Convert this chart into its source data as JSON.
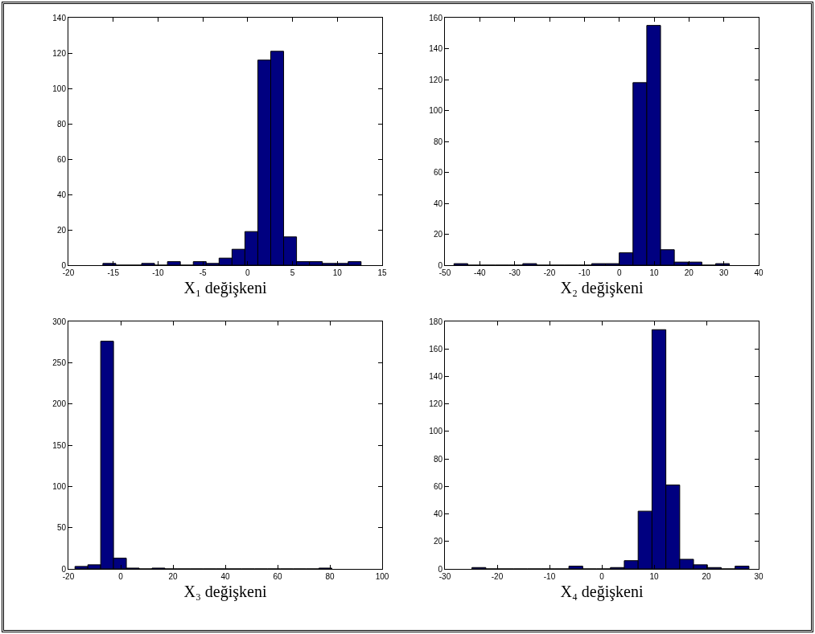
{
  "chart_data": [
    {
      "type": "histogram",
      "xlabel": "X₁ değişkeni",
      "color": "#000080",
      "bins": [
        -16.15,
        -14.71,
        -13.27,
        -11.83,
        -10.39,
        -8.95,
        -7.51,
        -6.07,
        -4.63,
        -3.19,
        -1.75,
        -0.31,
        1.13,
        2.57,
        4.01,
        5.45,
        6.89,
        8.33,
        9.77,
        11.21,
        12.65
      ],
      "values": [
        1,
        0,
        0,
        1,
        0,
        2,
        0,
        2,
        1,
        4,
        9,
        19,
        116,
        121,
        16,
        2,
        2,
        1,
        1,
        2
      ],
      "xlim": [
        -20,
        15
      ],
      "xticks": [
        -20,
        -15,
        -10,
        -5,
        0,
        5,
        10,
        15
      ],
      "ylim": [
        0,
        140
      ],
      "yticks": [
        0,
        20,
        40,
        60,
        80,
        100,
        120,
        140
      ]
    },
    {
      "type": "histogram",
      "xlabel": "X₂ değişkeni",
      "color": "#000080",
      "bins": [
        -47.4,
        -43.45,
        -39.5,
        -35.55,
        -31.6,
        -27.65,
        -23.7,
        -19.75,
        -15.8,
        -11.85,
        -7.9,
        -3.95,
        0,
        3.95,
        7.9,
        11.85,
        15.8,
        19.75,
        23.7,
        27.65,
        31.6
      ],
      "values": [
        1,
        0,
        0,
        0,
        0,
        1,
        0,
        0,
        0,
        0,
        1,
        1,
        8,
        118,
        155,
        10,
        2,
        2,
        0,
        1
      ],
      "xlim": [
        -50,
        40
      ],
      "xticks": [
        -50,
        -40,
        -30,
        -20,
        -10,
        0,
        10,
        20,
        30,
        40
      ],
      "ylim": [
        0,
        160
      ],
      "yticks": [
        0,
        20,
        40,
        60,
        80,
        100,
        120,
        140,
        160
      ]
    },
    {
      "type": "histogram",
      "xlabel": "X₃ değişkeni",
      "color": "#000080",
      "bins": [
        -17.47,
        -12.56,
        -7.65,
        -2.74,
        2.17,
        7.08,
        11.99,
        16.9,
        21.81,
        26.72,
        31.63,
        36.54,
        41.45,
        46.36,
        51.27,
        56.18,
        61.09,
        66,
        70.91,
        75.82,
        80.73
      ],
      "values": [
        3,
        5,
        276,
        13,
        1,
        0,
        1,
        0,
        0,
        0,
        0,
        0,
        0,
        0,
        0,
        0,
        0,
        0,
        0,
        1
      ],
      "xlim": [
        -20,
        100
      ],
      "xticks": [
        -20,
        0,
        20,
        40,
        60,
        80,
        100
      ],
      "ylim": [
        0,
        300
      ],
      "yticks": [
        0,
        50,
        100,
        150,
        200,
        250,
        300
      ]
    },
    {
      "type": "histogram",
      "xlabel": "X₄ değişkeni",
      "color": "#000080",
      "bins": [
        -24.83,
        -22.18,
        -19.53,
        -16.88,
        -14.24,
        -11.59,
        -8.94,
        -6.29,
        -3.64,
        -0.99,
        1.65,
        4.3,
        6.95,
        9.6,
        12.25,
        14.9,
        17.54,
        20.19,
        22.84,
        25.49,
        28.14
      ],
      "values": [
        1,
        0,
        0,
        0,
        0,
        0,
        0,
        2,
        0,
        0,
        1,
        6,
        42,
        174,
        61,
        7,
        3,
        1,
        0,
        2
      ],
      "xlim": [
        -30,
        30
      ],
      "xticks": [
        -30,
        -20,
        -10,
        0,
        10,
        20,
        30
      ],
      "ylim": [
        0,
        180
      ],
      "yticks": [
        0,
        20,
        40,
        60,
        80,
        100,
        120,
        140,
        160,
        180
      ]
    }
  ]
}
